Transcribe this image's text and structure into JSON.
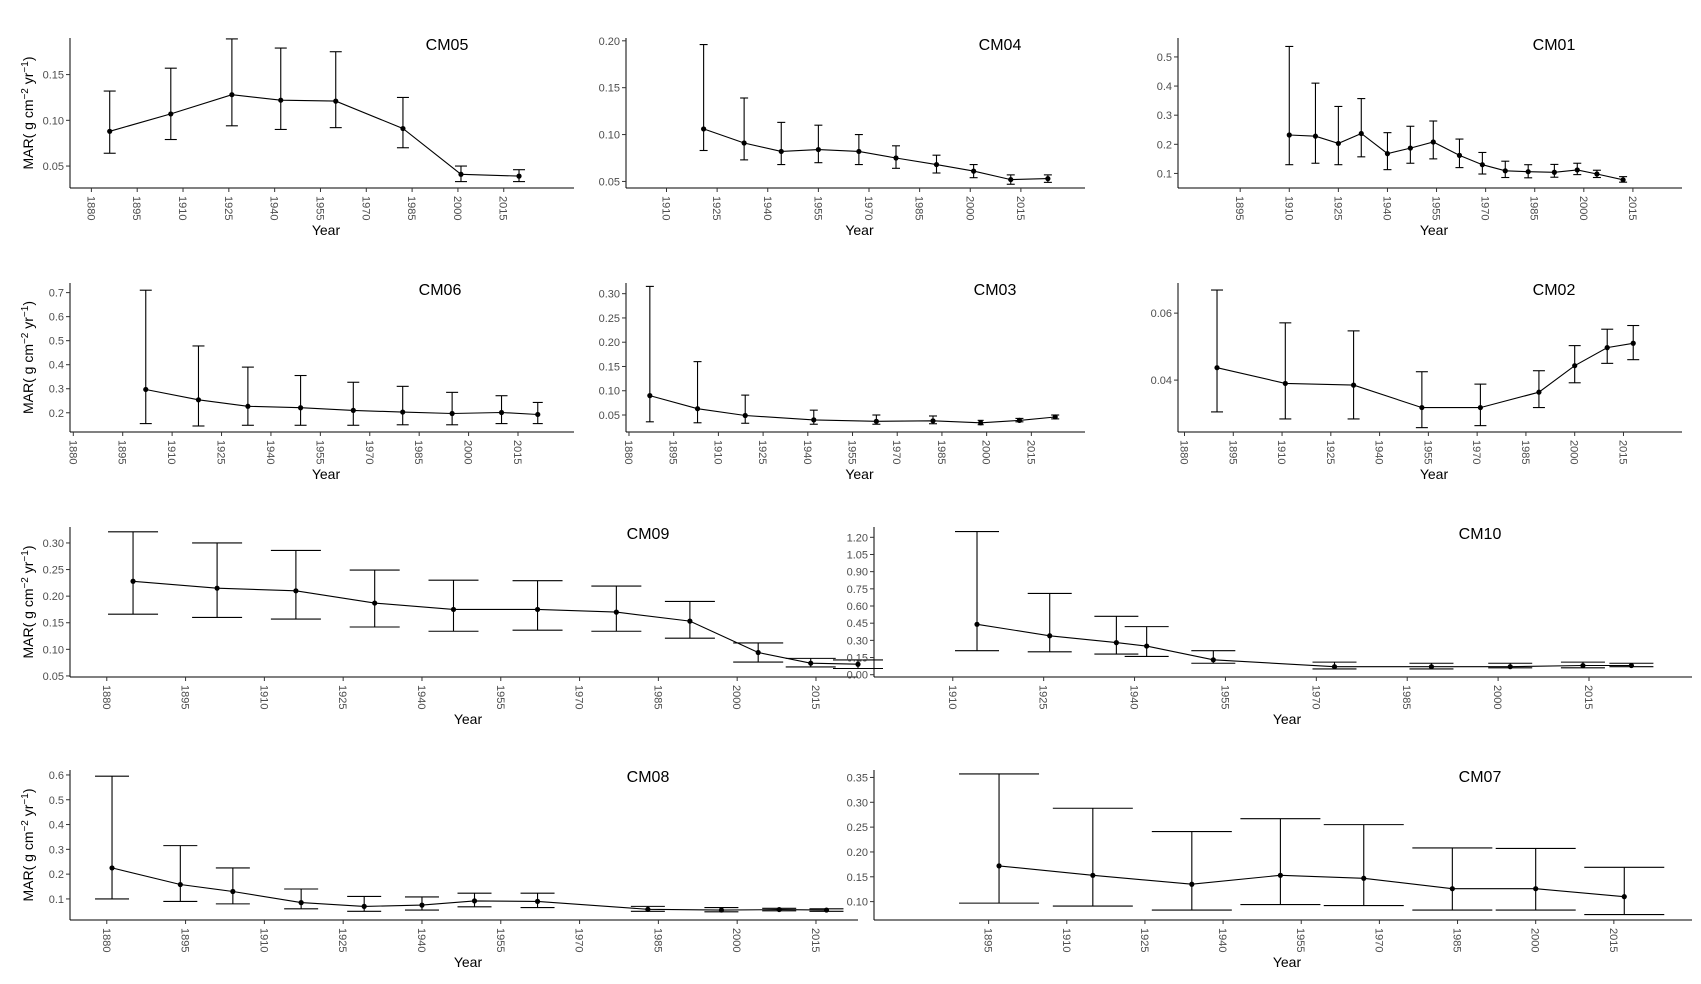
{
  "figure": {
    "ylabel_main": "MAR( g cm",
    "ylabel_sup1": "−2",
    "ylabel_mid": " yr",
    "ylabel_sup2": "−1",
    "ylabel_end": ")"
  },
  "chart_data": [
    {
      "type": "line",
      "title": "CM05",
      "xlabel": "Year",
      "xlim": [
        1873,
        2038
      ],
      "ylim": [
        0.026,
        0.19
      ],
      "xticks": [
        1880,
        1895,
        1910,
        1925,
        1940,
        1955,
        1970,
        1985,
        2000,
        2015
      ],
      "yticks": [
        0.05,
        0.1,
        0.15
      ],
      "ytick_labels": [
        "0.05",
        "0.10",
        "0.15"
      ],
      "show_ylabel": true,
      "x": [
        1886,
        1906,
        1926,
        1942,
        1960,
        1982,
        2001,
        2020
      ],
      "y": [
        0.088,
        0.107,
        0.128,
        0.122,
        0.121,
        0.091,
        0.041,
        0.039
      ],
      "lower": [
        0.064,
        0.079,
        0.094,
        0.09,
        0.092,
        0.07,
        0.033,
        0.033
      ],
      "upper": [
        0.132,
        0.157,
        0.189,
        0.179,
        0.175,
        0.125,
        0.05,
        0.046
      ],
      "cap_half": [
        6,
        6,
        6,
        6,
        6,
        6,
        6,
        6
      ]
    },
    {
      "type": "line",
      "title": "CM04",
      "xlabel": "Year",
      "xlim": [
        1898,
        2034
      ],
      "ylim": [
        0.043,
        0.203
      ],
      "xticks": [
        1910,
        1925,
        1940,
        1955,
        1970,
        1985,
        2000,
        2015
      ],
      "yticks": [
        0.05,
        0.1,
        0.15,
        0.2
      ],
      "ytick_labels": [
        "0.05",
        "0.10",
        "0.15",
        "0.20"
      ],
      "show_ylabel": false,
      "x": [
        1921,
        1933,
        1944,
        1955,
        1967,
        1978,
        1990,
        2001,
        2012,
        2023
      ],
      "y": [
        0.106,
        0.091,
        0.082,
        0.084,
        0.082,
        0.075,
        0.068,
        0.061,
        0.052,
        0.053
      ],
      "lower": [
        0.083,
        0.073,
        0.068,
        0.07,
        0.068,
        0.064,
        0.059,
        0.054,
        0.047,
        0.049
      ],
      "upper": [
        0.196,
        0.139,
        0.113,
        0.11,
        0.1,
        0.088,
        0.078,
        0.068,
        0.057,
        0.057
      ],
      "cap_half": [
        4,
        4,
        4,
        4,
        4,
        4,
        4,
        4,
        4,
        4
      ]
    },
    {
      "type": "line",
      "title": "CM01",
      "xlabel": "Year",
      "xlim": [
        1876,
        2030
      ],
      "ylim": [
        0.05,
        0.565
      ],
      "xticks": [
        1895,
        1910,
        1925,
        1940,
        1955,
        1970,
        1985,
        2000,
        2015
      ],
      "yticks": [
        0.1,
        0.2,
        0.3,
        0.4,
        0.5
      ],
      "ytick_labels": [
        "0.1",
        "0.2",
        "0.3",
        "0.4",
        "0.5"
      ],
      "show_ylabel": false,
      "x": [
        1910,
        1918,
        1925,
        1932,
        1940,
        1947,
        1954,
        1962,
        1969,
        1976,
        1983,
        1991,
        1998,
        2004,
        2012
      ],
      "y": [
        0.232,
        0.228,
        0.203,
        0.237,
        0.168,
        0.187,
        0.208,
        0.162,
        0.13,
        0.109,
        0.106,
        0.104,
        0.112,
        0.098,
        0.078
      ],
      "lower": [
        0.13,
        0.135,
        0.13,
        0.157,
        0.113,
        0.135,
        0.15,
        0.12,
        0.098,
        0.086,
        0.085,
        0.087,
        0.096,
        0.086,
        0.07
      ],
      "upper": [
        0.536,
        0.41,
        0.33,
        0.357,
        0.24,
        0.262,
        0.28,
        0.218,
        0.172,
        0.142,
        0.13,
        0.131,
        0.135,
        0.111,
        0.089
      ],
      "cap_half": [
        4,
        4,
        4,
        4,
        4,
        4,
        4,
        4,
        4,
        4,
        4,
        4,
        4,
        4,
        4
      ]
    },
    {
      "type": "line",
      "title": "CM06",
      "xlabel": "Year",
      "xlim": [
        1879,
        2032
      ],
      "ylim": [
        0.12,
        0.74
      ],
      "xticks": [
        1880,
        1895,
        1910,
        1925,
        1940,
        1955,
        1970,
        1985,
        2000,
        2015
      ],
      "yticks": [
        0.2,
        0.3,
        0.4,
        0.5,
        0.6,
        0.7
      ],
      "ytick_labels": [
        "0.2",
        "0.3",
        "0.4",
        "0.5",
        "0.6",
        "0.7"
      ],
      "show_ylabel": true,
      "x": [
        1902,
        1918,
        1933,
        1949,
        1965,
        1980,
        1995,
        2010,
        2021
      ],
      "y": [
        0.297,
        0.254,
        0.227,
        0.221,
        0.21,
        0.203,
        0.197,
        0.201,
        0.193
      ],
      "lower": [
        0.155,
        0.145,
        0.148,
        0.148,
        0.148,
        0.15,
        0.15,
        0.155,
        0.155
      ],
      "upper": [
        0.71,
        0.478,
        0.39,
        0.355,
        0.327,
        0.31,
        0.285,
        0.271,
        0.243
      ],
      "cap_half": [
        6,
        6,
        6,
        6,
        6,
        6,
        6,
        6,
        5
      ]
    },
    {
      "type": "line",
      "title": "CM03",
      "xlabel": "Year",
      "xlim": [
        1879,
        2033
      ],
      "ylim": [
        0.015,
        0.322
      ],
      "xticks": [
        1880,
        1895,
        1910,
        1925,
        1940,
        1955,
        1970,
        1985,
        2000,
        2015
      ],
      "yticks": [
        0.05,
        0.1,
        0.15,
        0.2,
        0.25,
        0.3
      ],
      "ytick_labels": [
        "0.05",
        "0.10",
        "0.15",
        "0.20",
        "0.25",
        "0.30"
      ],
      "show_ylabel": false,
      "x": [
        1887,
        1903,
        1919,
        1942,
        1963,
        1982,
        1998,
        2011,
        2023
      ],
      "y": [
        0.09,
        0.063,
        0.049,
        0.04,
        0.037,
        0.038,
        0.034,
        0.039,
        0.046
      ],
      "lower": [
        0.036,
        0.034,
        0.033,
        0.031,
        0.031,
        0.032,
        0.03,
        0.036,
        0.042
      ],
      "upper": [
        0.315,
        0.16,
        0.091,
        0.06,
        0.05,
        0.048,
        0.039,
        0.043,
        0.05
      ],
      "cap_half": [
        4,
        4,
        4,
        4,
        4,
        4,
        3,
        4,
        4
      ]
    },
    {
      "type": "line",
      "title": "CM02",
      "xlabel": "Year",
      "xlim": [
        1878,
        2033
      ],
      "ylim": [
        0.0245,
        0.069
      ],
      "xticks": [
        1880,
        1895,
        1910,
        1925,
        1940,
        1955,
        1970,
        1985,
        2000,
        2015
      ],
      "yticks": [
        0.04,
        0.06
      ],
      "ytick_labels": [
        "0.04",
        "0.06"
      ],
      "show_ylabel": false,
      "x": [
        1890,
        1911,
        1932,
        1953,
        1971,
        1989,
        2000,
        2010,
        2018
      ],
      "y": [
        0.0437,
        0.039,
        0.0385,
        0.0318,
        0.0318,
        0.0364,
        0.0443,
        0.0497,
        0.051
      ],
      "lower": [
        0.0305,
        0.0284,
        0.0284,
        0.0258,
        0.0264,
        0.0318,
        0.0392,
        0.045,
        0.0461
      ],
      "upper": [
        0.0669,
        0.0571,
        0.0547,
        0.0425,
        0.0388,
        0.0428,
        0.0503,
        0.0552,
        0.0563
      ],
      "cap_half": [
        6,
        6,
        6,
        6,
        6,
        6,
        6,
        6,
        6
      ]
    },
    {
      "type": "line",
      "title": "CM09",
      "xlabel": "Year",
      "xlim": [
        1873,
        2023
      ],
      "ylim": [
        0.048,
        0.33
      ],
      "xticks": [
        1880,
        1895,
        1910,
        1925,
        1940,
        1955,
        1970,
        1985,
        2000,
        2015
      ],
      "yticks": [
        0.05,
        0.1,
        0.15,
        0.2,
        0.25,
        0.3
      ],
      "ytick_labels": [
        "0.05",
        "0.10",
        "0.15",
        "0.20",
        "0.25",
        "0.30"
      ],
      "show_ylabel": true,
      "x": [
        1885,
        1901,
        1916,
        1931,
        1946,
        1962,
        1977,
        1991,
        2004,
        2014,
        2023
      ],
      "y": [
        0.228,
        0.215,
        0.21,
        0.187,
        0.175,
        0.175,
        0.17,
        0.153,
        0.094,
        0.074,
        0.072
      ],
      "lower": [
        0.166,
        0.16,
        0.157,
        0.142,
        0.134,
        0.136,
        0.134,
        0.121,
        0.076,
        0.067,
        0.064
      ],
      "upper": [
        0.321,
        0.3,
        0.286,
        0.249,
        0.23,
        0.229,
        0.219,
        0.19,
        0.112,
        0.083,
        0.08
      ],
      "cap_half": [
        25,
        25,
        25,
        25,
        25,
        25,
        25,
        25,
        25,
        25,
        25
      ]
    },
    {
      "type": "line",
      "title": "CM10",
      "xlabel": "Year",
      "xlim": [
        1897,
        2032
      ],
      "ylim": [
        -0.02,
        1.29
      ],
      "xticks": [
        1910,
        1925,
        1940,
        1955,
        1970,
        1985,
        2000,
        2015
      ],
      "yticks": [
        0.0,
        0.15,
        0.3,
        0.45,
        0.6,
        0.75,
        0.9,
        1.05,
        1.2
      ],
      "ytick_labels": [
        "0.00",
        "0.15",
        "0.30",
        "0.45",
        "0.60",
        "0.75",
        "0.90",
        "1.05",
        "1.20"
      ],
      "show_ylabel": false,
      "x": [
        1914,
        1926,
        1937,
        1942,
        1953,
        1973,
        1989,
        2002,
        2014,
        2022
      ],
      "y": [
        0.44,
        0.34,
        0.28,
        0.25,
        0.13,
        0.07,
        0.07,
        0.07,
        0.08,
        0.08
      ],
      "lower": [
        0.21,
        0.2,
        0.18,
        0.16,
        0.1,
        0.05,
        0.05,
        0.06,
        0.06,
        0.07
      ],
      "upper": [
        1.25,
        0.71,
        0.51,
        0.42,
        0.21,
        0.11,
        0.1,
        0.1,
        0.11,
        0.1
      ],
      "cap_half": [
        22,
        22,
        22,
        22,
        22,
        22,
        22,
        22,
        22,
        22
      ]
    },
    {
      "type": "line",
      "title": "CM08",
      "xlabel": "Year",
      "xlim": [
        1873,
        2023
      ],
      "ylim": [
        0.015,
        0.62
      ],
      "xticks": [
        1880,
        1895,
        1910,
        1925,
        1940,
        1955,
        1970,
        1985,
        2000,
        2015
      ],
      "yticks": [
        0.1,
        0.2,
        0.3,
        0.4,
        0.5,
        0.6
      ],
      "ytick_labels": [
        "0.1",
        "0.2",
        "0.3",
        "0.4",
        "0.5",
        "0.6"
      ],
      "show_ylabel": true,
      "x": [
        1881,
        1894,
        1904,
        1917,
        1929,
        1940,
        1950,
        1962,
        1983,
        1997,
        2008,
        2017
      ],
      "y": [
        0.225,
        0.158,
        0.13,
        0.085,
        0.07,
        0.075,
        0.092,
        0.09,
        0.058,
        0.055,
        0.057,
        0.055
      ],
      "lower": [
        0.1,
        0.09,
        0.08,
        0.06,
        0.05,
        0.055,
        0.068,
        0.065,
        0.05,
        0.048,
        0.052,
        0.05
      ],
      "upper": [
        0.595,
        0.315,
        0.225,
        0.14,
        0.11,
        0.108,
        0.123,
        0.123,
        0.07,
        0.065,
        0.062,
        0.06
      ],
      "cap_half": [
        17,
        17,
        17,
        17,
        17,
        17,
        17,
        17,
        17,
        17,
        17,
        17
      ]
    },
    {
      "type": "line",
      "title": "CM07",
      "xlabel": "Year",
      "xlim": [
        1873,
        2030
      ],
      "ylim": [
        0.063,
        0.365
      ],
      "xticks": [
        1895,
        1910,
        1925,
        1940,
        1955,
        1970,
        1985,
        2000,
        2015
      ],
      "yticks": [
        0.1,
        0.15,
        0.2,
        0.25,
        0.3,
        0.35
      ],
      "ytick_labels": [
        "0.10",
        "0.15",
        "0.20",
        "0.25",
        "0.30",
        "0.35"
      ],
      "show_ylabel": false,
      "x": [
        1897,
        1915,
        1934,
        1951,
        1967,
        1984,
        2000,
        2017
      ],
      "y": [
        0.172,
        0.153,
        0.135,
        0.153,
        0.147,
        0.126,
        0.126,
        0.11
      ],
      "lower": [
        0.097,
        0.091,
        0.083,
        0.094,
        0.092,
        0.083,
        0.083,
        0.074
      ],
      "upper": [
        0.357,
        0.288,
        0.241,
        0.267,
        0.255,
        0.208,
        0.207,
        0.169
      ],
      "cap_half": [
        40,
        40,
        40,
        40,
        40,
        40,
        40,
        40
      ]
    }
  ]
}
